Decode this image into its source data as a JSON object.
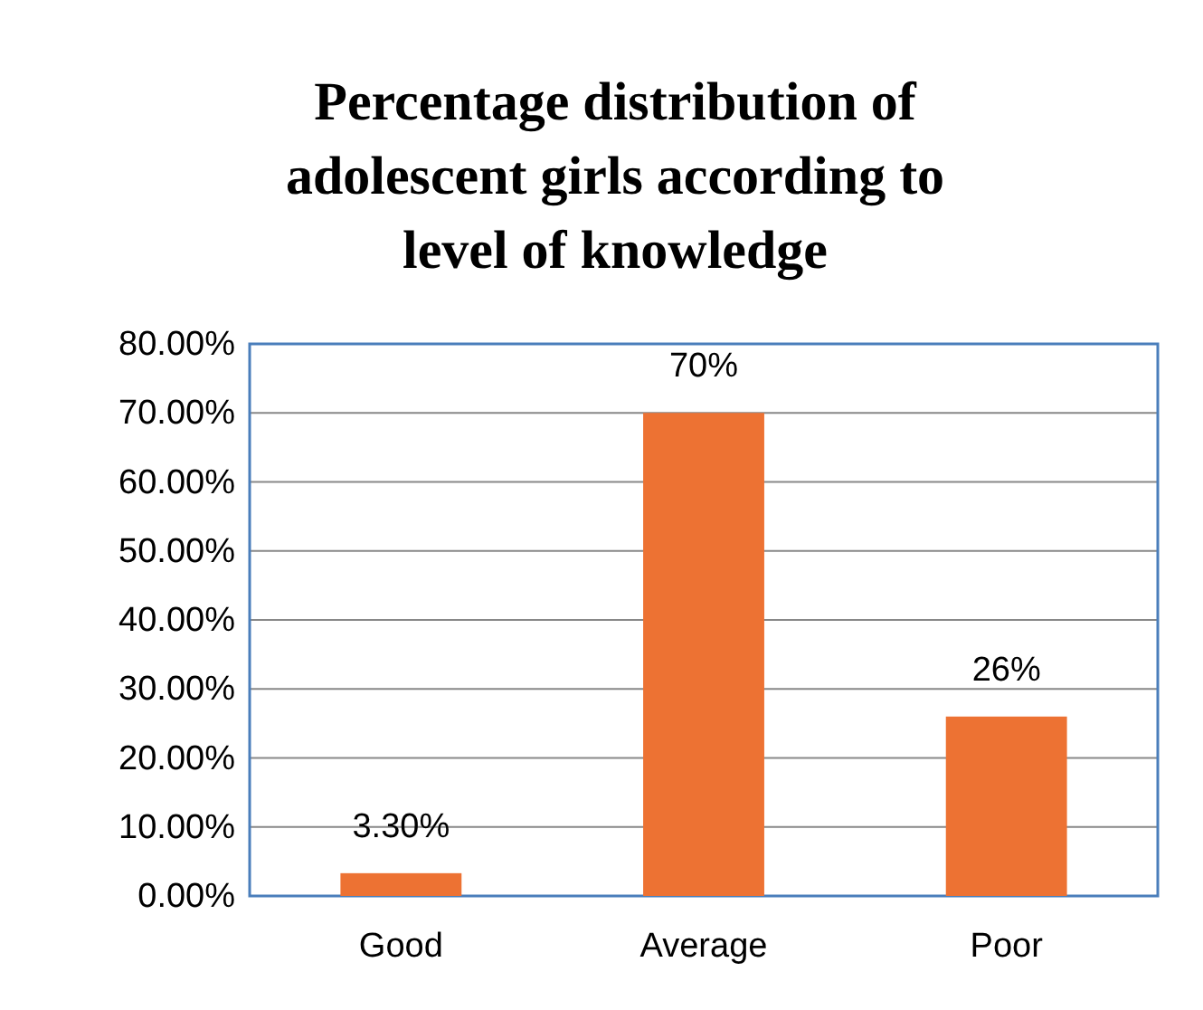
{
  "chart_data": {
    "type": "bar",
    "title": "Percentage distribution of adolescent girls according to level of knowledge",
    "categories": [
      "Good",
      "Average",
      "Poor"
    ],
    "values": [
      3.3,
      70,
      26
    ],
    "color": "#ed7233",
    "value_labels": [
      "3.30%",
      "70%",
      "26%"
    ],
    "ylim": [
      0,
      80
    ],
    "yticks": [
      {
        "value": 0,
        "label": "0.00%"
      },
      {
        "value": 10,
        "label": "10.00%"
      },
      {
        "value": 20,
        "label": "20.00%"
      },
      {
        "value": 30,
        "label": "30.00%"
      },
      {
        "value": 40,
        "label": "40.00%"
      },
      {
        "value": 50,
        "label": "50.00%"
      },
      {
        "value": 60,
        "label": "60.00%"
      },
      {
        "value": 70,
        "label": "70.00%"
      },
      {
        "value": 80,
        "label": "80.00%"
      }
    ],
    "grid": "y"
  }
}
